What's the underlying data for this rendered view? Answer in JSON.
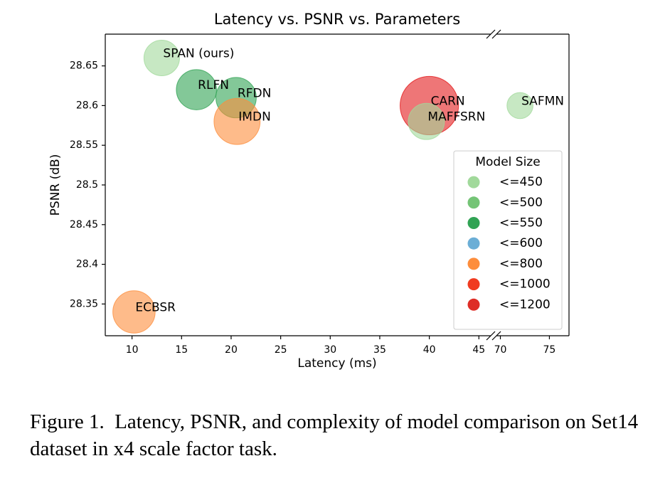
{
  "chart_data": {
    "type": "bubble",
    "title": "Latency vs. PSNR vs. Parameters",
    "x_label": "Latency (ms)",
    "y_label": "PSNR (dB)",
    "points": [
      {
        "name": "SPAN (ours)",
        "x": 13,
        "y": 28.66,
        "size": 426,
        "color": "#a1d99b"
      },
      {
        "name": "RLFN",
        "x": 16.5,
        "y": 28.62,
        "size": 543,
        "color": "#31a354"
      },
      {
        "name": "RFDN",
        "x": 20.5,
        "y": 28.61,
        "size": 550,
        "color": "#31a354"
      },
      {
        "name": "IMDN",
        "x": 20.6,
        "y": 28.58,
        "size": 715,
        "color": "#fd8d3c"
      },
      {
        "name": "CARN",
        "x": 40,
        "y": 28.6,
        "size": 1150,
        "color": "#e31a1c"
      },
      {
        "name": "MAFFSRN",
        "x": 39.7,
        "y": 28.58,
        "size": 441,
        "color": "#a1d99b"
      },
      {
        "name": "SAFMN",
        "x": 72,
        "y": 28.6,
        "size": 228,
        "color": "#a1d99b"
      },
      {
        "name": "ECBSR",
        "x": 10.2,
        "y": 28.34,
        "size": 603,
        "color": "#fd8d3c"
      }
    ],
    "xlim": [
      7.3,
      77
    ],
    "xbreak": [
      46.2,
      69.6
    ],
    "xticks": [
      10,
      15,
      20,
      25,
      30,
      35,
      40,
      45,
      70,
      75
    ],
    "ylim": [
      28.31,
      28.69
    ],
    "yticks": [
      28.35,
      28.4,
      28.45,
      28.5,
      28.55,
      28.6,
      28.65
    ],
    "legend": {
      "title": "Model Size",
      "loc": "lower right",
      "items": [
        {
          "label": "<=450",
          "color": "#a1d99b"
        },
        {
          "label": "<=500",
          "color": "#74c476"
        },
        {
          "label": "<=550",
          "color": "#31a354"
        },
        {
          "label": "<=600",
          "color": "#6baed6"
        },
        {
          "label": "<=800",
          "color": "#fd8d3c"
        },
        {
          "label": "<=1000",
          "color": "#f03b20"
        },
        {
          "label": "<=1200",
          "color": "#de2d26"
        }
      ]
    }
  },
  "caption": "Figure 1.  Latency, PSNR, and complexity of model comparison on Set14 dataset in x4 scale factor task."
}
